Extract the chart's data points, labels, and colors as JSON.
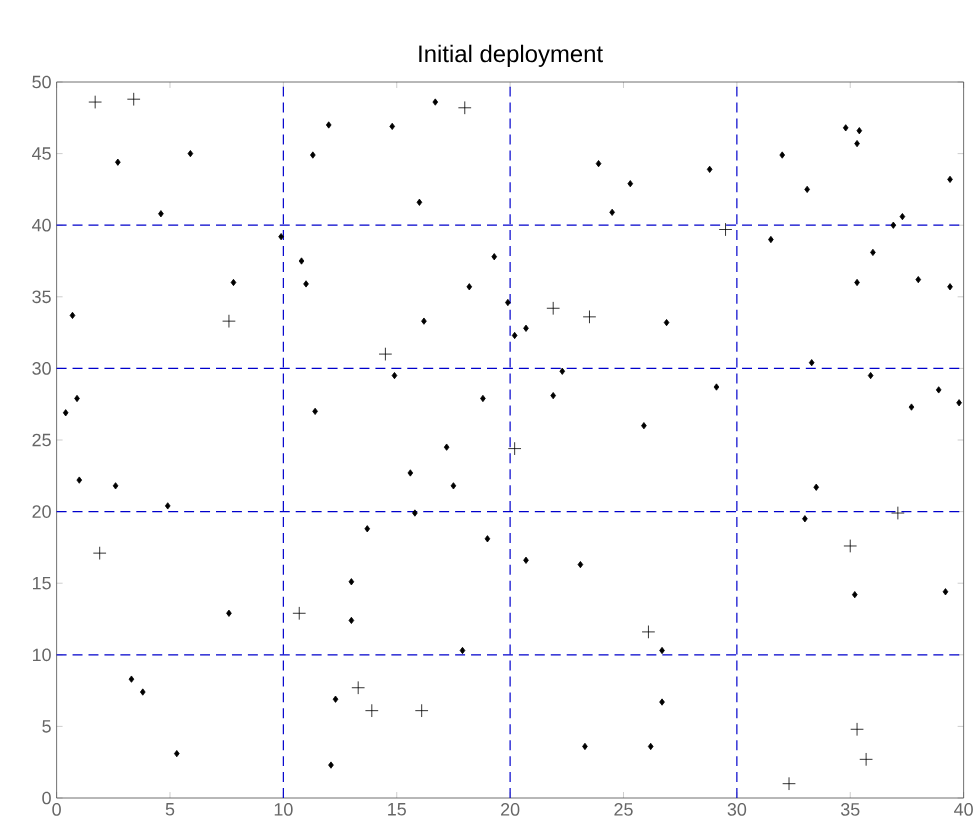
{
  "chart_data": {
    "type": "scatter",
    "title": "Initial deployment",
    "xlim": [
      0,
      40
    ],
    "ylim": [
      0,
      50
    ],
    "xticks": [
      0,
      5,
      10,
      15,
      20,
      25,
      30,
      35,
      40
    ],
    "yticks": [
      0,
      5,
      10,
      15,
      20,
      25,
      30,
      35,
      40,
      45,
      50
    ],
    "ref_lines": [
      {
        "axis": "x",
        "value": 10,
        "color": "#0000cc",
        "line_style": "dashed"
      },
      {
        "axis": "x",
        "value": 20,
        "color": "#0000cc",
        "line_style": "dashed"
      },
      {
        "axis": "x",
        "value": 30,
        "color": "#0000cc",
        "line_style": "dashed"
      },
      {
        "axis": "y",
        "value": 10,
        "color": "#0000cc",
        "line_style": "dashed"
      },
      {
        "axis": "y",
        "value": 20,
        "color": "#0000cc",
        "line_style": "dashed"
      },
      {
        "axis": "y",
        "value": 30,
        "color": "#0000cc",
        "line_style": "dashed"
      },
      {
        "axis": "y",
        "value": 40,
        "color": "#0000cc",
        "line_style": "dashed"
      }
    ],
    "series": [
      {
        "color": "#000000",
        "marker": "diamond",
        "x": [
          2.7,
          5.9,
          4.6,
          9.9,
          10.8,
          11.0,
          11.3,
          12.0,
          14.8,
          16.7,
          16.0,
          16.2,
          18.2,
          19.3,
          7.8,
          0.7,
          0.4,
          0.9,
          14.9,
          11.4,
          18.8,
          19.9,
          20.2,
          20.7,
          26.9,
          22.3,
          21.9,
          29.1,
          25.9,
          23.9,
          25.3,
          24.5,
          28.8,
          32.0,
          33.1,
          34.8,
          35.4,
          35.3,
          31.5,
          36.0,
          35.3,
          36.9,
          37.3,
          38.0,
          39.4,
          39.4,
          33.3,
          35.9,
          37.7,
          38.9,
          39.8,
          1.0,
          2.6,
          4.9,
          7.6,
          3.3,
          3.8,
          5.3,
          13.0,
          13.0,
          13.7,
          15.6,
          17.2,
          17.5,
          15.8,
          19.0,
          17.9,
          12.3,
          12.1,
          20.7,
          23.1,
          26.7,
          26.7,
          23.3,
          26.2,
          33.5,
          33.0,
          35.2,
          39.2
        ],
        "values": [
          44.4,
          45.0,
          40.8,
          39.2,
          37.5,
          35.9,
          44.9,
          47.0,
          46.9,
          48.6,
          41.6,
          33.3,
          35.7,
          37.8,
          36.0,
          33.7,
          26.9,
          27.9,
          29.5,
          27.0,
          27.9,
          34.6,
          32.3,
          32.8,
          33.2,
          29.8,
          28.1,
          28.7,
          26.0,
          44.3,
          42.9,
          40.9,
          43.9,
          44.9,
          42.5,
          46.8,
          46.6,
          45.7,
          39.0,
          38.1,
          36.0,
          40.0,
          40.6,
          36.2,
          35.7,
          43.2,
          30.4,
          29.5,
          27.3,
          28.5,
          27.6,
          22.2,
          21.8,
          20.4,
          12.9,
          8.3,
          7.4,
          3.1,
          15.1,
          12.4,
          18.8,
          22.7,
          24.5,
          21.8,
          19.9,
          18.1,
          10.3,
          6.9,
          2.3,
          16.6,
          16.3,
          10.3,
          6.7,
          3.6,
          3.6,
          21.7,
          19.5,
          14.2,
          14.4
        ]
      },
      {
        "color": "#000000",
        "marker": "cross",
        "x": [
          1.7,
          3.4,
          18.0,
          7.6,
          14.5,
          21.9,
          23.5,
          29.5,
          1.9,
          10.7,
          13.3,
          13.9,
          16.1,
          20.2,
          26.1,
          37.1,
          35.0,
          35.3,
          35.7,
          32.3
        ],
        "values": [
          48.6,
          48.8,
          48.2,
          33.3,
          31.0,
          34.2,
          33.6,
          39.7,
          17.1,
          12.9,
          7.7,
          6.1,
          6.1,
          24.4,
          11.6,
          19.9,
          17.6,
          4.8,
          2.7,
          1.0
        ]
      }
    ]
  }
}
